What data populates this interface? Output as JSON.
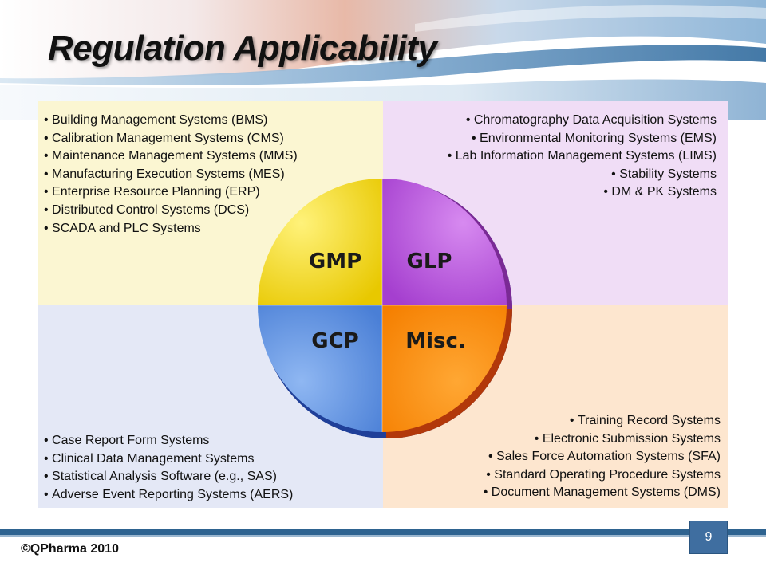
{
  "title": "Regulation Applicability",
  "quadrants": {
    "gmp": {
      "label": "GMP",
      "color": "#f2d300",
      "items": [
        "Building Management Systems (BMS)",
        "Calibration Management Systems (CMS)",
        "Maintenance Management Systems (MMS)",
        "Manufacturing Execution Systems (MES)",
        "Enterprise Resource Planning (ERP)",
        "Distributed Control Systems (DCS)",
        "SCADA and PLC Systems"
      ]
    },
    "glp": {
      "label": "GLP",
      "color": "#b84fd8",
      "items": [
        "Chromatography Data Acquisition Systems",
        "Environmental Monitoring Systems (EMS)",
        "Lab Information Management Systems (LIMS)",
        "Stability Systems",
        "DM & PK Systems"
      ]
    },
    "gcp": {
      "label": "GCP",
      "color": "#5b8fe0",
      "items": [
        "Case Report Form Systems",
        "Clinical Data Management Systems",
        "Statistical Analysis Software (e.g., SAS)",
        "Adverse Event Reporting Systems (AERS)"
      ]
    },
    "misc": {
      "label": "Misc.",
      "color": "#ff8a00",
      "items": [
        "Training Record Systems",
        "Electronic Submission Systems",
        "Sales Force Automation Systems (SFA)",
        "Standard Operating Procedure Systems",
        "Document Management Systems (DMS)"
      ]
    }
  },
  "footer": {
    "copyright": "©QPharma 2010",
    "page_number": "9"
  }
}
